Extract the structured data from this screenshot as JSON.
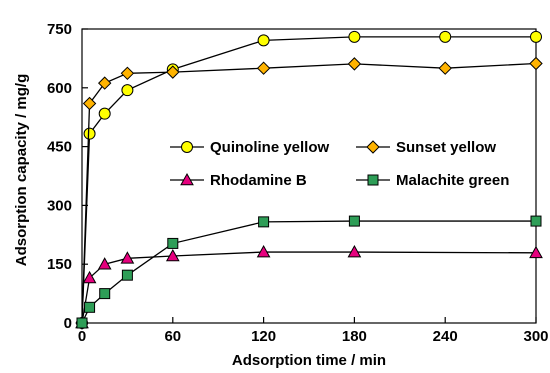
{
  "chart_data": {
    "type": "line",
    "title": "",
    "xlabel": "Adsorption time / min",
    "ylabel": "Adsorption capacity / mg/g",
    "xlim": [
      0,
      300
    ],
    "ylim": [
      0,
      750
    ],
    "xticks": [
      0,
      60,
      120,
      180,
      240,
      300
    ],
    "yticks": [
      0,
      150,
      300,
      450,
      600,
      750
    ],
    "xtick_labels": [
      "0",
      "60",
      "120",
      "180",
      "240",
      "300"
    ],
    "ytick_labels": [
      "0",
      "150",
      "300",
      "450",
      "600",
      "750"
    ],
    "grid": false,
    "legend_placement": "center-right",
    "series": [
      {
        "name": "Quinoline yellow",
        "marker": "circle",
        "color": "#ffff00",
        "x": [
          0,
          5,
          15,
          30,
          60,
          120,
          180,
          240,
          300
        ],
        "y": [
          0,
          483,
          534,
          594,
          647,
          721,
          730,
          730,
          730
        ]
      },
      {
        "name": "Sunset yellow",
        "marker": "diamond",
        "color": "#ffb300",
        "x": [
          0,
          5,
          15,
          30,
          60,
          120,
          180,
          240,
          300
        ],
        "y": [
          0,
          560,
          612,
          637,
          640,
          650,
          661,
          650,
          662
        ]
      },
      {
        "name": "Rhodamine B",
        "marker": "triangle",
        "color": "#e6007e",
        "x": [
          0,
          5,
          15,
          30,
          60,
          120,
          180,
          300
        ],
        "y": [
          0,
          115,
          150,
          165,
          171,
          181,
          181,
          179
        ]
      },
      {
        "name": "Malachite green",
        "marker": "square",
        "color": "#2e9e57",
        "x": [
          0,
          5,
          15,
          30,
          60,
          120,
          180,
          300
        ],
        "y": [
          0,
          40,
          75,
          122,
          203,
          258,
          260,
          260
        ]
      }
    ]
  }
}
